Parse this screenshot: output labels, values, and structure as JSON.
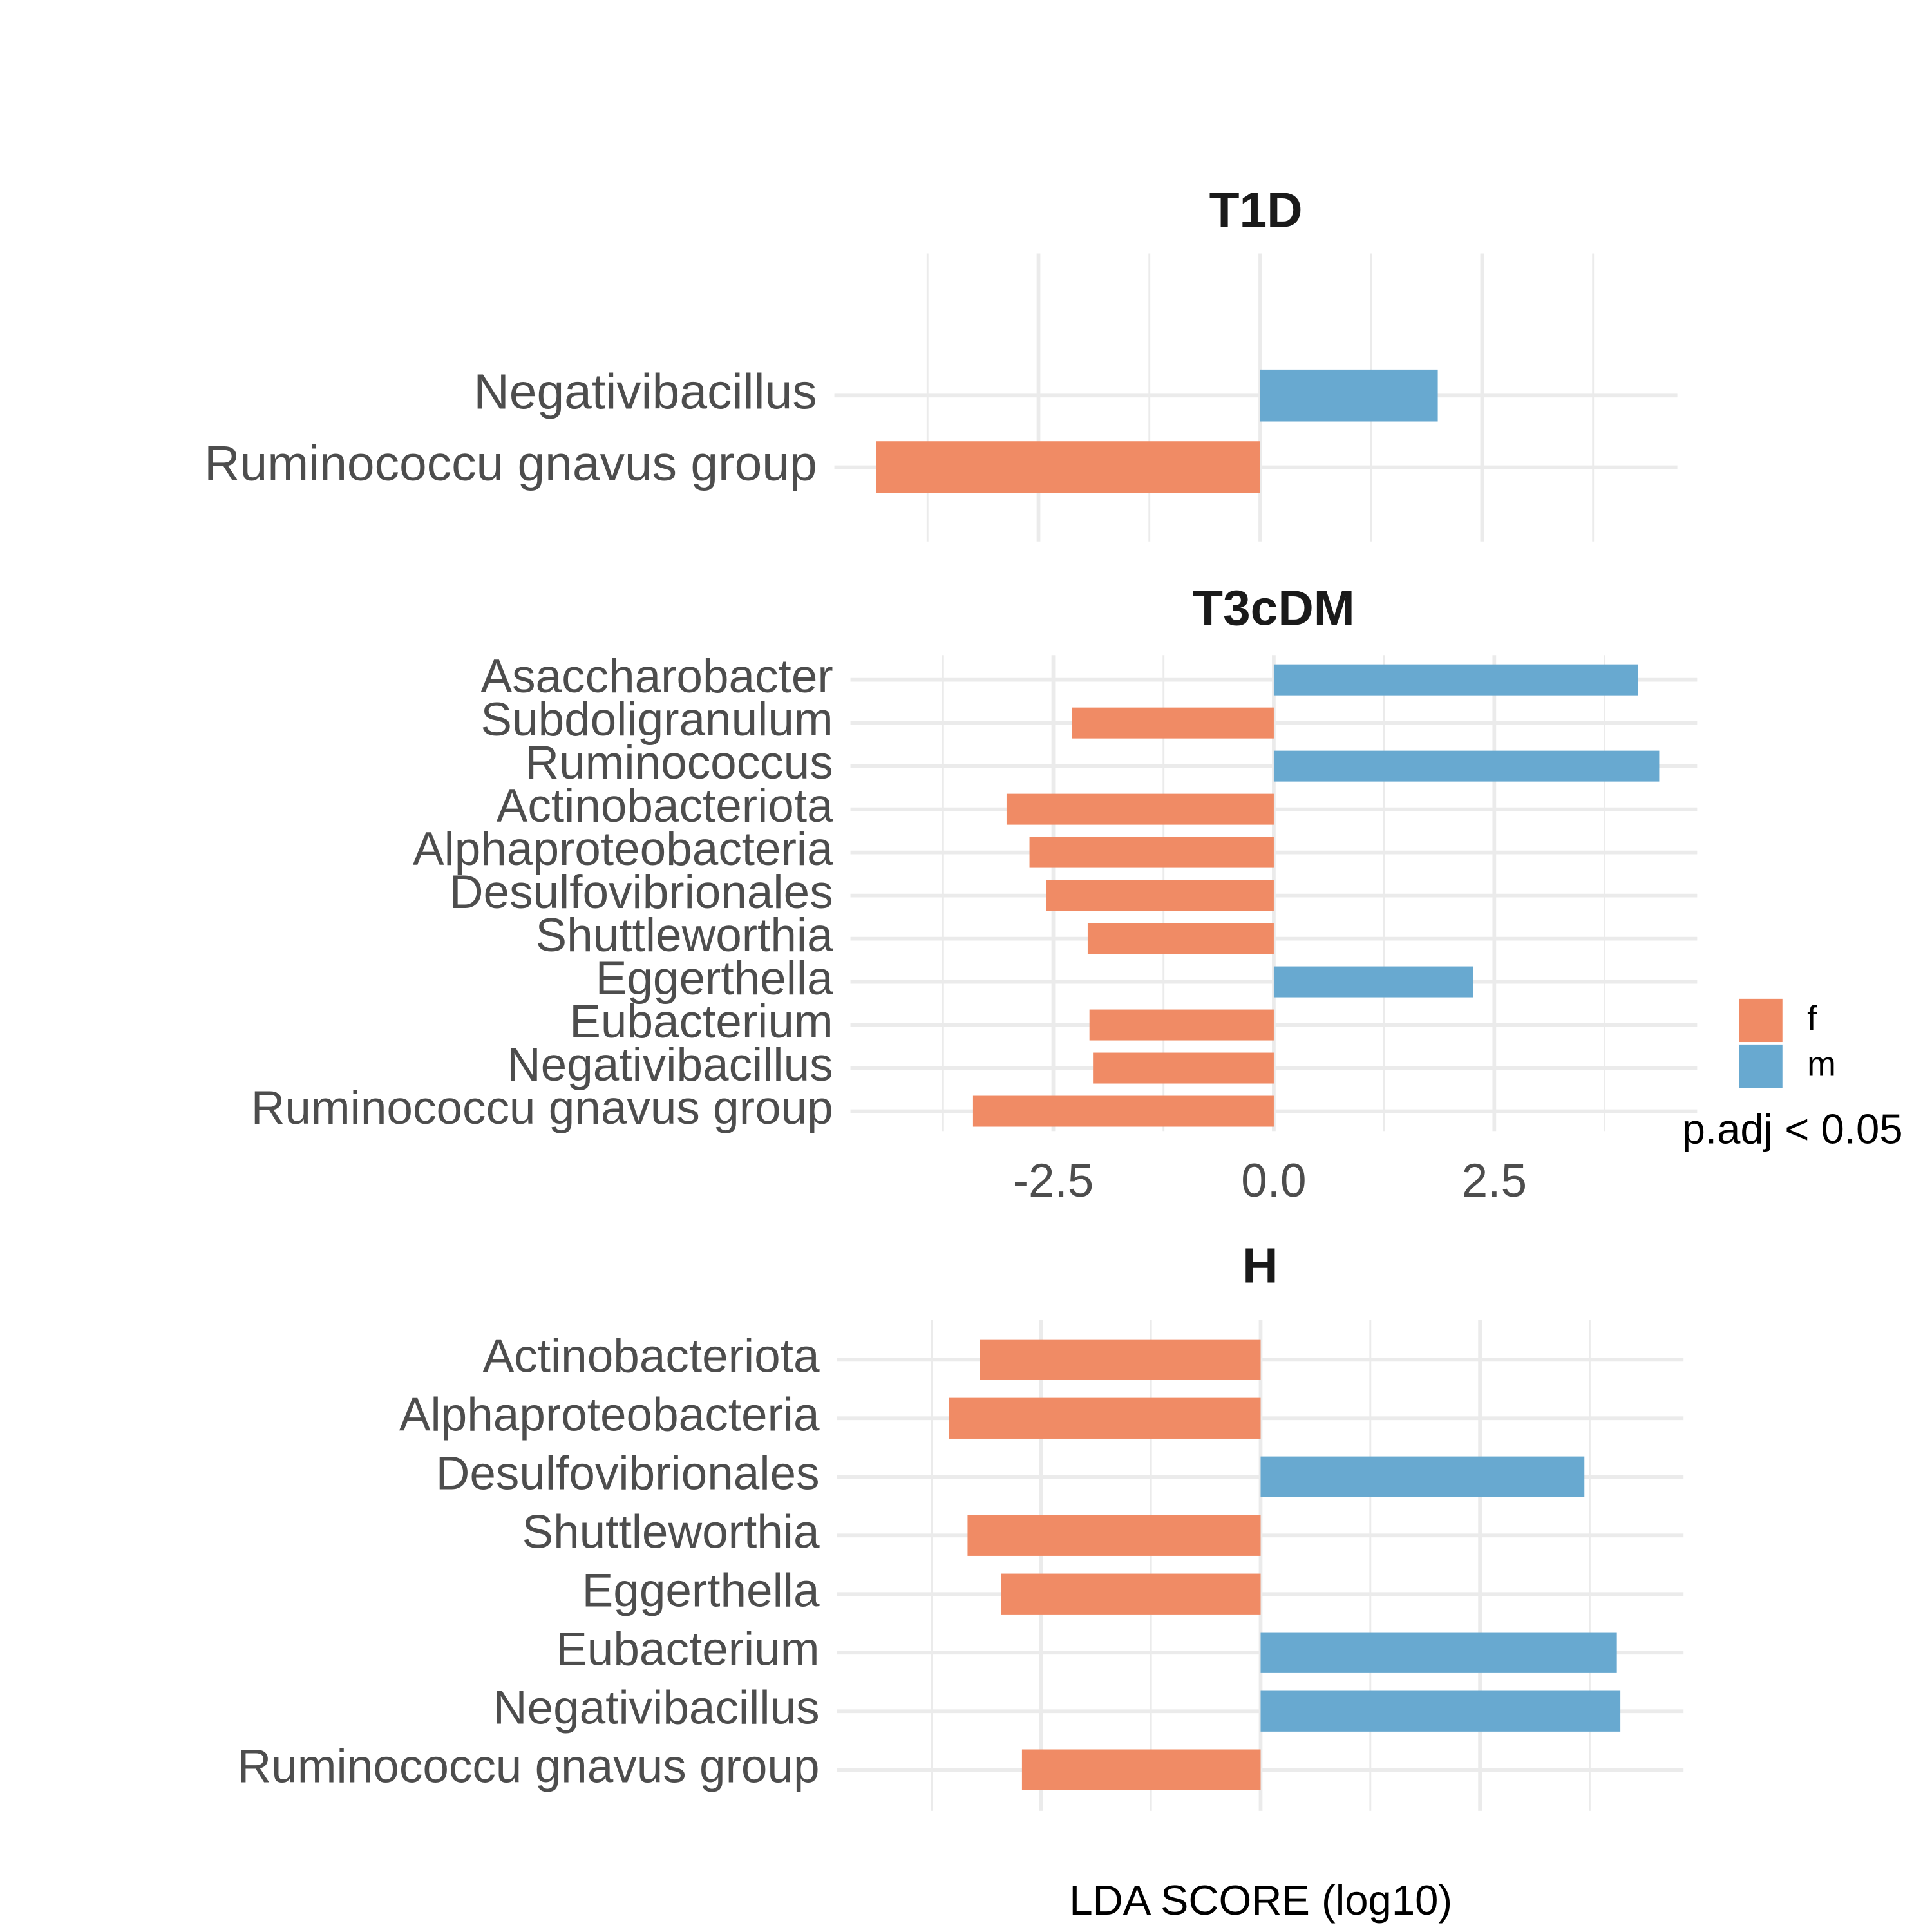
{
  "chart_data": [
    {
      "type": "bar",
      "title": "T1D",
      "categories": [
        "Negativibacillus",
        "Ruminococcu gnavus group"
      ],
      "values": [
        2.0,
        -4.33
      ],
      "groups": [
        "m",
        "f"
      ],
      "xlim": [
        -4.8,
        4.7
      ],
      "xticks": [
        -2.5,
        0,
        2.5
      ],
      "tick_labels": false,
      "grid": true
    },
    {
      "type": "bar",
      "title": "T3cDM",
      "categories": [
        "Asaccharobacter",
        "Subdoligranulum",
        "Ruminococcus",
        "Actinobacteriota",
        "Alphaproteobacteria",
        "Desulfovibrionales",
        "Shuttleworthia",
        "Eggerthella",
        "Eubacterium",
        "Negativibacillus",
        "Ruminococcu gnavus group"
      ],
      "values": [
        4.13,
        -2.29,
        4.37,
        -3.03,
        -2.77,
        -2.58,
        -2.11,
        2.26,
        -2.09,
        -2.05,
        -3.41
      ],
      "groups": [
        "m",
        "f",
        "m",
        "f",
        "f",
        "f",
        "f",
        "m",
        "f",
        "f",
        "f"
      ],
      "xlim": [
        -4.8,
        4.8
      ],
      "xticks": [
        -2.5,
        {
          "value": 0,
          "label": "0.0"
        },
        2.5
      ],
      "tick_labels": true,
      "grid": true
    },
    {
      "type": "bar",
      "title": "H",
      "categories": [
        "Actinobacteriota",
        "Alphaproteobacteria",
        "Desulfovibrionales",
        "Shuttleworthia",
        "Eggerthella",
        "Eubacterium",
        "Negativibacillus",
        "Ruminococcu gnavus group"
      ],
      "values": [
        -3.2,
        -3.55,
        3.69,
        -3.34,
        -2.96,
        4.06,
        4.1,
        -2.72
      ],
      "groups": [
        "f",
        "f",
        "m",
        "f",
        "f",
        "m",
        "m",
        "f"
      ],
      "xlim": [
        -4.83,
        4.82
      ],
      "xticks": [
        -2.5,
        0,
        2.5
      ],
      "tick_labels": false,
      "grid": true
    }
  ],
  "xlabel": "LDA SCORE (log10)",
  "legend": {
    "title": "p.adj < 0.05",
    "entries": [
      {
        "name": "f",
        "color": "#f08b65"
      },
      {
        "name": "m",
        "color": "#68a9d0"
      }
    ]
  }
}
